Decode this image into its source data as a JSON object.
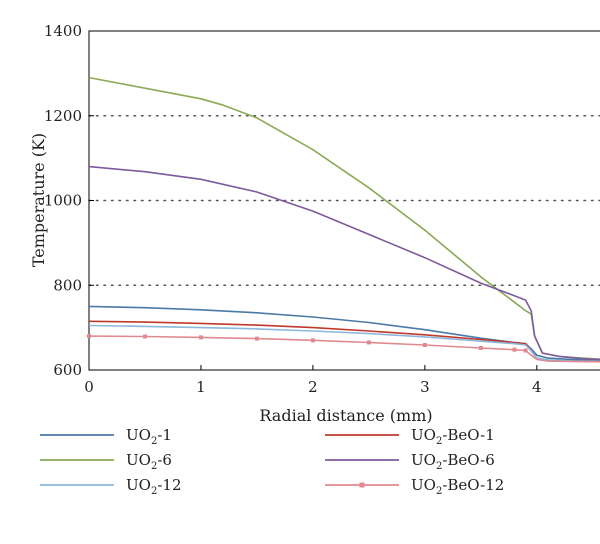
{
  "chart_data": {
    "type": "line",
    "xlabel": "Radial distance (mm)",
    "ylabel": "Temperature (K)",
    "xlim": [
      0,
      4.6
    ],
    "ylim": [
      600,
      1400
    ],
    "xticks": [
      0,
      1,
      2,
      3,
      4
    ],
    "yticks": [
      600,
      800,
      1000,
      1200,
      1400
    ],
    "grid": "dotted horizontal",
    "legend_position": "bottom",
    "series": [
      {
        "name": "UO2-1",
        "label_base": "UO",
        "label_sub": "2",
        "label_rest": "-1",
        "color": "#4a7aa7",
        "marker": false,
        "x": [
          0,
          0.5,
          1.0,
          1.5,
          2.0,
          2.5,
          3.0,
          3.5,
          3.8,
          3.9,
          3.95,
          4.0,
          4.1,
          4.3,
          4.6
        ],
        "y": [
          750,
          747,
          742,
          735,
          725,
          712,
          695,
          675,
          665,
          662,
          650,
          635,
          628,
          625,
          622
        ]
      },
      {
        "name": "UO2-BeO-1",
        "label_base": "UO",
        "label_sub": "2",
        "label_rest": "-BeO-1",
        "color": "#c0392b",
        "marker": false,
        "x": [
          0,
          0.5,
          1.0,
          1.5,
          2.0,
          2.5,
          3.0,
          3.5,
          3.8,
          3.9,
          3.95,
          4.0,
          4.1,
          4.3,
          4.6
        ],
        "y": [
          715,
          713,
          710,
          706,
          700,
          692,
          683,
          672,
          665,
          662,
          645,
          628,
          623,
          621,
          620
        ]
      },
      {
        "name": "UO2-6",
        "label_base": "UO",
        "label_sub": "2",
        "label_rest": "-6",
        "color": "#8aaa55",
        "marker": false,
        "x": [
          0,
          0.5,
          1.0,
          1.2,
          1.5,
          2.0,
          2.5,
          3.0,
          3.5,
          3.8,
          3.9,
          3.95,
          3.98,
          4.05,
          4.2,
          4.4,
          4.6
        ],
        "y": [
          1290,
          1265,
          1240,
          1225,
          1195,
          1120,
          1030,
          930,
          820,
          760,
          740,
          732,
          680,
          640,
          632,
          628,
          625
        ]
      },
      {
        "name": "UO2-BeO-6",
        "label_base": "UO",
        "label_sub": "2",
        "label_rest": "-BeO-6",
        "color": "#7d5a9e",
        "marker": false,
        "x": [
          0,
          0.5,
          1.0,
          1.5,
          2.0,
          2.5,
          3.0,
          3.5,
          3.8,
          3.9,
          3.95,
          3.98,
          4.05,
          4.2,
          4.4,
          4.6
        ],
        "y": [
          1080,
          1068,
          1050,
          1020,
          975,
          920,
          865,
          805,
          775,
          765,
          740,
          680,
          640,
          632,
          627,
          624
        ]
      },
      {
        "name": "UO2-12",
        "label_base": "UO",
        "label_sub": "2",
        "label_rest": "-12",
        "color": "#8db8dc",
        "marker": false,
        "x": [
          0,
          0.5,
          1.0,
          1.5,
          2.0,
          2.5,
          3.0,
          3.5,
          3.8,
          3.9,
          3.95,
          4.0,
          4.1,
          4.3,
          4.6
        ],
        "y": [
          705,
          703,
          700,
          697,
          692,
          686,
          678,
          668,
          662,
          659,
          645,
          628,
          624,
          621,
          620
        ]
      },
      {
        "name": "UO2-BeO-12",
        "label_base": "UO",
        "label_sub": "2",
        "label_rest": "-BeO-12",
        "color": "#e08a8f",
        "marker": true,
        "x": [
          0,
          0.5,
          1.0,
          1.5,
          2.0,
          2.5,
          3.0,
          3.5,
          3.8,
          3.9,
          3.95,
          4.0,
          4.1,
          4.3,
          4.6
        ],
        "y": [
          680,
          679,
          677,
          674,
          670,
          665,
          659,
          652,
          648,
          646,
          635,
          625,
          621,
          620,
          619
        ]
      }
    ]
  }
}
